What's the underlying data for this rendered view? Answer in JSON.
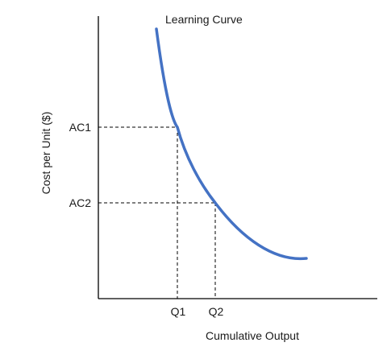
{
  "chart_data": {
    "type": "line",
    "title": "Learning Curve",
    "xlabel": "Cumulative Output",
    "ylabel": "Cost per Unit ($)",
    "grid": false,
    "legend": "none",
    "line_color": "#4472C4",
    "marked_points": [
      {
        "x_label": "Q1",
        "y_label": "AC1"
      },
      {
        "x_label": "Q2",
        "y_label": "AC2"
      }
    ]
  }
}
